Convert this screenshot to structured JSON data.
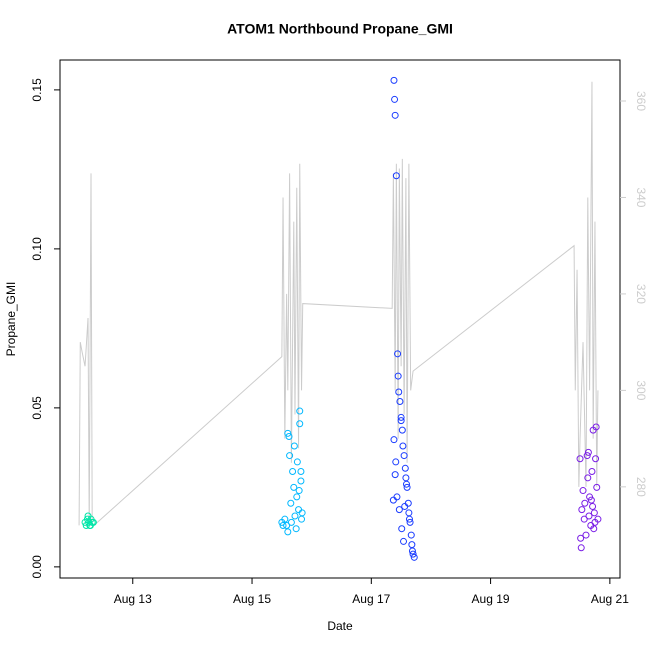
{
  "chart_data": {
    "type": "scatter",
    "title": "ATOM1 Northbound Propane_GMI",
    "x_label": "Date",
    "y_label": "Propane_GMI",
    "xlim": [
      11.78,
      21.17
    ],
    "xticks": [
      {
        "value": 13,
        "label": "Aug 13"
      },
      {
        "value": 15,
        "label": "Aug 15"
      },
      {
        "value": 17,
        "label": "Aug 17"
      },
      {
        "value": 19,
        "label": "Aug 19"
      },
      {
        "value": 21,
        "label": "Aug 21"
      }
    ],
    "ylim": [
      -0.0035,
      0.1594
    ],
    "yticks": [
      {
        "value": 0,
        "label": "0.00"
      },
      {
        "value": 0.05,
        "label": "0.05"
      },
      {
        "value": 0.1,
        "label": "0.10"
      },
      {
        "value": 0.15,
        "label": "0.15"
      }
    ],
    "y2lim": [
      261.1,
      368.5
    ],
    "y2ticks": [
      280,
      300,
      320,
      340,
      360
    ],
    "y2_tick_color": "#cccccc",
    "series": [
      {
        "type": "scatter",
        "color": "#00e6a8",
        "x": [
          12.2,
          12.22,
          12.24,
          12.26,
          12.28,
          12.3,
          12.32,
          12.34,
          12.25,
          12.29
        ],
        "values": [
          0.014,
          0.013,
          0.015,
          0.014,
          0.013,
          0.015,
          0.014,
          0.014,
          0.016,
          0.013
        ]
      },
      {
        "type": "scatter",
        "color": "#00b8ff",
        "x": [
          15.5,
          15.52,
          15.55,
          15.58,
          15.6,
          15.62,
          15.63,
          15.65,
          15.66,
          15.68,
          15.7,
          15.71,
          15.72,
          15.74,
          15.75,
          15.76,
          15.78,
          15.8,
          15.8,
          15.82,
          15.83,
          15.84,
          15.82,
          15.79,
          15.6
        ],
        "values": [
          0.014,
          0.013,
          0.015,
          0.013,
          0.042,
          0.041,
          0.035,
          0.02,
          0.014,
          0.03,
          0.025,
          0.038,
          0.016,
          0.012,
          0.022,
          0.033,
          0.018,
          0.049,
          0.045,
          0.027,
          0.015,
          0.017,
          0.03,
          0.024,
          0.011
        ]
      },
      {
        "type": "scatter",
        "color": "#1a3cff",
        "x": [
          17.38,
          17.39,
          17.4,
          17.42,
          17.44,
          17.45,
          17.46,
          17.48,
          17.5,
          17.52,
          17.53,
          17.55,
          17.57,
          17.58,
          17.6,
          17.62,
          17.63,
          17.65,
          17.67,
          17.68,
          17.7,
          17.72,
          17.4,
          17.43,
          17.47,
          17.51,
          17.54,
          17.59,
          17.64,
          17.69,
          17.38,
          17.41,
          17.37,
          17.5,
          17.56
        ],
        "values": [
          0.153,
          0.147,
          0.142,
          0.123,
          0.067,
          0.06,
          0.055,
          0.052,
          0.047,
          0.043,
          0.038,
          0.035,
          0.031,
          0.028,
          0.025,
          0.02,
          0.017,
          0.014,
          0.01,
          0.007,
          0.004,
          0.003,
          0.029,
          0.022,
          0.018,
          0.012,
          0.008,
          0.026,
          0.015,
          0.005,
          0.04,
          0.033,
          0.021,
          0.046,
          0.019
        ]
      },
      {
        "type": "scatter",
        "color": "#7a1ee6",
        "x": [
          20.5,
          20.52,
          20.53,
          20.55,
          20.57,
          20.58,
          20.6,
          20.62,
          20.63,
          20.65,
          20.66,
          20.68,
          20.7,
          20.71,
          20.72,
          20.74,
          20.75,
          20.76,
          20.78,
          20.8,
          20.51,
          20.64,
          20.69,
          20.73,
          20.77
        ],
        "values": [
          0.034,
          0.006,
          0.018,
          0.024,
          0.015,
          0.02,
          0.01,
          0.035,
          0.028,
          0.016,
          0.022,
          0.013,
          0.03,
          0.019,
          0.043,
          0.017,
          0.014,
          0.034,
          0.025,
          0.015,
          0.009,
          0.036,
          0.021,
          0.012,
          0.044
        ]
      },
      {
        "type": "line",
        "axis": "y2",
        "color": "#cccccc",
        "x": [
          12.1,
          12.12,
          12.15,
          12.2,
          12.25,
          12.27,
          12.3,
          12.32,
          12.35,
          15.5,
          15.52,
          15.55,
          15.58,
          15.6,
          15.63,
          15.66,
          15.7,
          15.72,
          15.75,
          15.78,
          15.8,
          15.83,
          15.85,
          17.35,
          17.37,
          17.4,
          17.42,
          17.45,
          17.47,
          17.5,
          17.52,
          17.55,
          17.58,
          17.6,
          17.63,
          17.66,
          17.7,
          20.4,
          20.42,
          20.45,
          20.48,
          20.5,
          20.55,
          20.6,
          20.63,
          20.66,
          20.7,
          20.72,
          20.75,
          20.78,
          20.8
        ],
        "values": [
          272,
          310,
          308,
          305,
          315,
          272,
          345,
          272,
          272,
          307,
          340,
          290,
          320,
          300,
          345,
          285,
          335,
          295,
          342,
          288,
          347,
          300,
          318,
          317,
          345,
          300,
          347,
          290,
          346,
          305,
          348,
          295,
          344,
          285,
          347,
          300,
          304,
          330,
          300,
          325,
          280,
          290,
          310,
          280,
          340,
          300,
          364,
          290,
          335,
          280,
          300
        ]
      }
    ]
  }
}
